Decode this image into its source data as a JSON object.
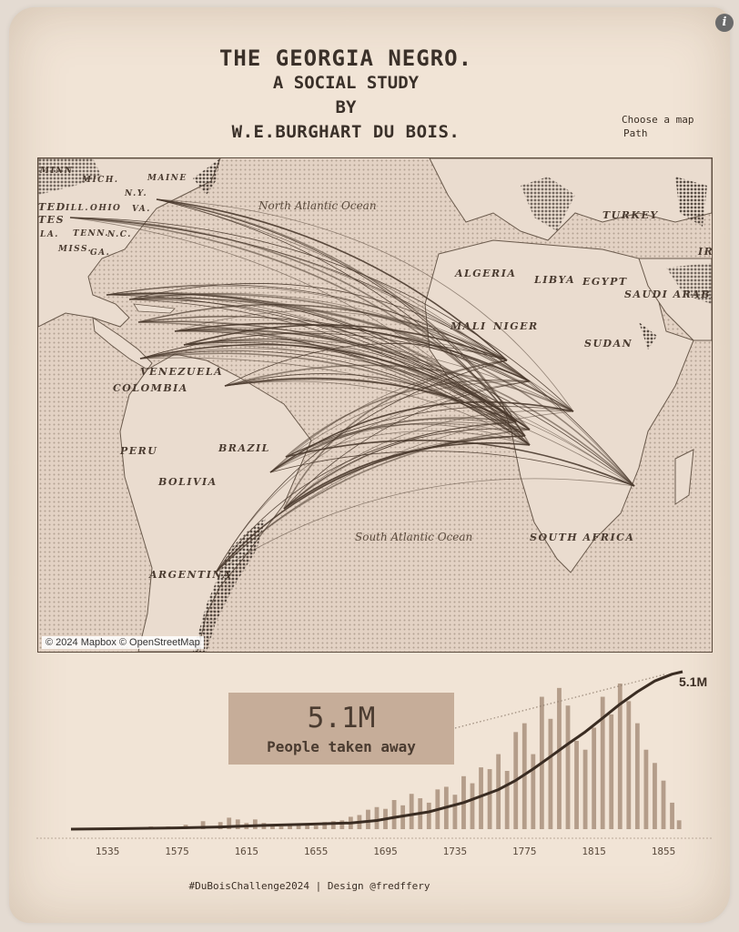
{
  "header": {
    "title_line1": "THE GEORGIA NEGRO.",
    "title_line2": "A SOCIAL STUDY",
    "title_line3": "BY",
    "title_line4": "W.E.BURGHART DU BOIS."
  },
  "map_control": {
    "label": "Choose a map",
    "selected": "Path"
  },
  "map": {
    "attribution": "© 2024 Mapbox © OpenStreetMap",
    "labels": {
      "maine": "MAINE",
      "mich": "MICH.",
      "ny": "N.Y.",
      "ill": "ILL.",
      "ohio": "OHIO",
      "va": "VA.",
      "ted": "TED",
      "tes": "TES",
      "tenn": "TENN.",
      "nc": "N.C.",
      "miss": "MISS.",
      "ga": "GA.",
      "la": "LA.",
      "north_atlantic": "North Atlantic Ocean",
      "south_atlantic": "South Atlantic Ocean",
      "turkey": "TURKEY",
      "algeria": "ALGERIA",
      "libya": "LIBYA",
      "egypt": "EGYPT",
      "saudi": "SAUDI ARABI",
      "ir": "IR",
      "mali": "MALI",
      "niger": "NIGER",
      "sudan": "SUDAN",
      "venezuela": "VENEZUELA",
      "colombia": "COLOMBIA",
      "peru": "PERU",
      "brazil": "BRAZIL",
      "bolivia": "BOLIVIA",
      "argentina": "ARGENTINA",
      "south_africa": "SOUTH AFRICA",
      "minn": "MINN"
    }
  },
  "kpi": {
    "value": "5.1M",
    "label": "People taken away"
  },
  "chart_data": {
    "type": "bar",
    "xlabel": "",
    "ylabel": "",
    "x_ticks": [
      "1535",
      "1575",
      "1615",
      "1655",
      "1695",
      "1735",
      "1775",
      "1815",
      "1855"
    ],
    "cumulative_end_label": "5.1M",
    "x_range": [
      1514,
      1866
    ],
    "series": [
      {
        "kind": "bars",
        "years": [
          1520,
          1530,
          1540,
          1550,
          1560,
          1570,
          1580,
          1590,
          1600,
          1605,
          1610,
          1615,
          1620,
          1625,
          1630,
          1635,
          1640,
          1645,
          1650,
          1655,
          1660,
          1665,
          1670,
          1675,
          1680,
          1685,
          1690,
          1695,
          1700,
          1705,
          1710,
          1715,
          1720,
          1725,
          1730,
          1735,
          1740,
          1745,
          1750,
          1755,
          1760,
          1765,
          1770,
          1775,
          1780,
          1785,
          1790,
          1795,
          1800,
          1805,
          1810,
          1815,
          1820,
          1825,
          1830,
          1835,
          1840,
          1845,
          1850,
          1855,
          1860,
          1864
        ],
        "values": [
          1,
          1,
          2,
          2,
          3,
          3,
          5,
          9,
          8,
          13,
          11,
          7,
          11,
          7,
          4,
          3,
          5,
          4,
          6,
          4,
          8,
          9,
          10,
          14,
          16,
          22,
          25,
          23,
          33,
          27,
          40,
          35,
          30,
          45,
          48,
          39,
          60,
          52,
          70,
          68,
          85,
          66,
          110,
          120,
          85,
          150,
          125,
          160,
          140,
          100,
          90,
          115,
          150,
          130,
          165,
          145,
          120,
          90,
          75,
          55,
          30,
          10
        ]
      },
      {
        "kind": "cumulative",
        "years": [
          1514,
          1550,
          1575,
          1600,
          1625,
          1650,
          1675,
          1690,
          1700,
          1720,
          1740,
          1760,
          1770,
          1780,
          1790,
          1800,
          1810,
          1820,
          1830,
          1840,
          1850,
          1860,
          1866
        ],
        "values": [
          0,
          0.02,
          0.04,
          0.07,
          0.12,
          0.16,
          0.2,
          0.28,
          0.38,
          0.56,
          0.86,
          1.28,
          1.58,
          1.95,
          2.35,
          2.76,
          3.15,
          3.6,
          4.05,
          4.45,
          4.8,
          5.02,
          5.1
        ]
      }
    ],
    "ylim_bars": [
      0,
      165
    ],
    "ylim_cumulative": [
      0,
      5.1
    ]
  },
  "footer": {
    "credit": "#DuBoisChallenge2024 | Design @fredffery"
  }
}
